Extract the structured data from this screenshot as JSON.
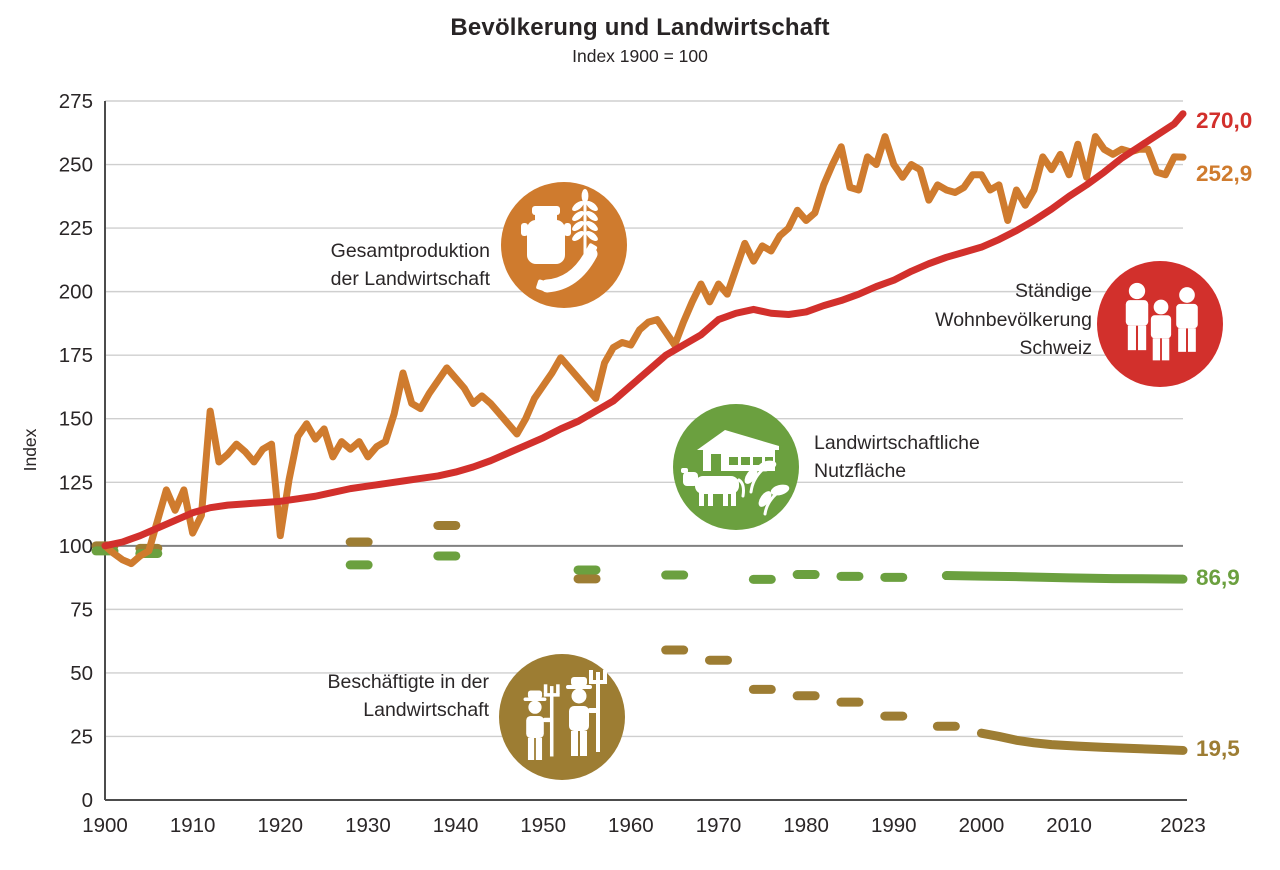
{
  "legend": [
    {
      "label": "Gesamtproduktion\nder Landwirtschaft",
      "icon": "milk-can-wheat-sausage-icon",
      "color": "#cf7b2e"
    },
    {
      "label": "Ständige\nWohnbevölkerung\nSchweiz",
      "icon": "people-icon",
      "color": "#d2302c"
    },
    {
      "label": "Landwirtschaftliche\nNutzfläche",
      "icon": "farmhouse-cow-leaves-icon",
      "color": "#6ba03f"
    },
    {
      "label": "Beschäftigte in der\nLandwirtschaft",
      "icon": "farmers-pitchfork-icon",
      "color": "#9d7d33"
    }
  ],
  "chart_data": {
    "type": "line",
    "title": "Bevölkerung und Landwirtschaft",
    "subtitle": "Index 1900 = 100",
    "ylabel": "Index",
    "ylim": [
      0,
      275
    ],
    "xlim": [
      1900,
      2023
    ],
    "yticks": [
      0,
      25,
      50,
      75,
      100,
      125,
      150,
      175,
      200,
      225,
      250,
      275
    ],
    "xticks": [
      1900,
      1910,
      1920,
      1930,
      1940,
      1950,
      1960,
      1970,
      1980,
      1990,
      2000,
      2010,
      2023
    ],
    "reference_gridline": 100,
    "grid": true,
    "legend_position": "inside",
    "series": [
      {
        "name": "Beschäftigte in der Landwirtschaft",
        "color": "#9d7d33",
        "style": "dashes-then-solid",
        "end_label": "19,5",
        "end_value": 19.5,
        "dash_points": [
          [
            1900,
            100
          ],
          [
            1905,
            99
          ],
          [
            1929,
            101.5
          ],
          [
            1939,
            108
          ],
          [
            1955,
            87
          ],
          [
            1965,
            59
          ],
          [
            1970,
            55
          ],
          [
            1975,
            43.5
          ],
          [
            1980,
            41
          ],
          [
            1985,
            38.5
          ],
          [
            1990,
            33
          ],
          [
            1996,
            29
          ]
        ],
        "line_points": [
          [
            2000,
            26.3
          ],
          [
            2002,
            25
          ],
          [
            2004,
            23.5
          ],
          [
            2006,
            22.5
          ],
          [
            2008,
            21.8
          ],
          [
            2011,
            21.2
          ],
          [
            2014,
            20.7
          ],
          [
            2017,
            20.3
          ],
          [
            2020,
            19.9
          ],
          [
            2023,
            19.5
          ]
        ]
      },
      {
        "name": "Landwirtschaftliche Nutzfläche",
        "color": "#6ba03f",
        "style": "dashes-then-solid",
        "end_label": "86,9",
        "end_value": 86.9,
        "dash_points": [
          [
            1900,
            98
          ],
          [
            1905,
            97
          ],
          [
            1929,
            92.5
          ],
          [
            1939,
            96
          ],
          [
            1955,
            90.5
          ],
          [
            1965,
            88.5
          ],
          [
            1975,
            86.8
          ],
          [
            1980,
            88.7
          ],
          [
            1985,
            88
          ],
          [
            1990,
            87.6
          ]
        ],
        "line_points": [
          [
            1996,
            88.3
          ],
          [
            2000,
            88.1
          ],
          [
            2005,
            87.8
          ],
          [
            2010,
            87.4
          ],
          [
            2015,
            87.1
          ],
          [
            2020,
            87.0
          ],
          [
            2023,
            86.9
          ]
        ]
      },
      {
        "name": "Gesamtproduktion der Landwirtschaft",
        "color": "#cf7b2e",
        "style": "solid",
        "end_label": "252,9",
        "end_value": 252.9,
        "points": [
          [
            1900,
            100
          ],
          [
            1901,
            97
          ],
          [
            1902,
            94.5
          ],
          [
            1903,
            93
          ],
          [
            1904,
            96
          ],
          [
            1905,
            98
          ],
          [
            1906,
            110
          ],
          [
            1907,
            122
          ],
          [
            1908,
            114
          ],
          [
            1909,
            122
          ],
          [
            1910,
            105
          ],
          [
            1911,
            112
          ],
          [
            1912,
            153
          ],
          [
            1913,
            133
          ],
          [
            1914,
            136
          ],
          [
            1915,
            140
          ],
          [
            1916,
            137
          ],
          [
            1917,
            133
          ],
          [
            1918,
            138
          ],
          [
            1919,
            140
          ],
          [
            1920,
            104
          ],
          [
            1921,
            126
          ],
          [
            1922,
            143
          ],
          [
            1923,
            148
          ],
          [
            1924,
            142
          ],
          [
            1925,
            146
          ],
          [
            1926,
            135
          ],
          [
            1927,
            141
          ],
          [
            1928,
            138
          ],
          [
            1929,
            141
          ],
          [
            1930,
            135
          ],
          [
            1931,
            139
          ],
          [
            1932,
            141
          ],
          [
            1933,
            152
          ],
          [
            1934,
            168
          ],
          [
            1935,
            156
          ],
          [
            1936,
            154
          ],
          [
            1937,
            160
          ],
          [
            1938,
            165
          ],
          [
            1939,
            170
          ],
          [
            1940,
            166
          ],
          [
            1941,
            162
          ],
          [
            1942,
            156
          ],
          [
            1943,
            159
          ],
          [
            1944,
            156
          ],
          [
            1945,
            152
          ],
          [
            1946,
            148
          ],
          [
            1947,
            144
          ],
          [
            1948,
            150
          ],
          [
            1949,
            158
          ],
          [
            1950,
            163
          ],
          [
            1951,
            168
          ],
          [
            1952,
            174
          ],
          [
            1953,
            170
          ],
          [
            1954,
            166
          ],
          [
            1955,
            162
          ],
          [
            1956,
            158
          ],
          [
            1957,
            172
          ],
          [
            1958,
            178
          ],
          [
            1959,
            180
          ],
          [
            1960,
            179
          ],
          [
            1961,
            185
          ],
          [
            1962,
            188
          ],
          [
            1963,
            189
          ],
          [
            1964,
            184
          ],
          [
            1965,
            179
          ],
          [
            1966,
            188
          ],
          [
            1967,
            196
          ],
          [
            1968,
            203
          ],
          [
            1969,
            196
          ],
          [
            1970,
            203
          ],
          [
            1971,
            199
          ],
          [
            1972,
            209
          ],
          [
            1973,
            219
          ],
          [
            1974,
            212
          ],
          [
            1975,
            218
          ],
          [
            1976,
            216
          ],
          [
            1977,
            222
          ],
          [
            1978,
            225
          ],
          [
            1979,
            232
          ],
          [
            1980,
            228
          ],
          [
            1981,
            231
          ],
          [
            1982,
            242
          ],
          [
            1983,
            250
          ],
          [
            1984,
            257
          ],
          [
            1985,
            241
          ],
          [
            1986,
            240
          ],
          [
            1987,
            253
          ],
          [
            1988,
            250
          ],
          [
            1989,
            261
          ],
          [
            1990,
            250
          ],
          [
            1991,
            245
          ],
          [
            1992,
            250
          ],
          [
            1993,
            248
          ],
          [
            1994,
            236
          ],
          [
            1995,
            242
          ],
          [
            1996,
            240
          ],
          [
            1997,
            239
          ],
          [
            1998,
            241
          ],
          [
            1999,
            246
          ],
          [
            2000,
            246
          ],
          [
            2001,
            240
          ],
          [
            2002,
            242
          ],
          [
            2003,
            228
          ],
          [
            2004,
            240
          ],
          [
            2005,
            234
          ],
          [
            2006,
            240
          ],
          [
            2007,
            253
          ],
          [
            2008,
            248
          ],
          [
            2009,
            254
          ],
          [
            2010,
            246
          ],
          [
            2011,
            258
          ],
          [
            2012,
            245
          ],
          [
            2013,
            261
          ],
          [
            2014,
            256
          ],
          [
            2015,
            254
          ],
          [
            2016,
            256
          ],
          [
            2017,
            255
          ],
          [
            2018,
            256
          ],
          [
            2019,
            256
          ],
          [
            2020,
            247
          ],
          [
            2021,
            246
          ],
          [
            2022,
            253
          ],
          [
            2023,
            252.9
          ]
        ]
      },
      {
        "name": "Ständige Wohnbevölkerung Schweiz",
        "color": "#d2302c",
        "style": "solid",
        "end_label": "270,0",
        "end_value": 270.0,
        "points": [
          [
            1900,
            100
          ],
          [
            1902,
            101.5
          ],
          [
            1904,
            104
          ],
          [
            1906,
            107
          ],
          [
            1908,
            110
          ],
          [
            1910,
            113
          ],
          [
            1912,
            115
          ],
          [
            1914,
            116
          ],
          [
            1916,
            116.5
          ],
          [
            1918,
            117
          ],
          [
            1920,
            117.5
          ],
          [
            1922,
            118.5
          ],
          [
            1924,
            119.5
          ],
          [
            1926,
            121
          ],
          [
            1928,
            122.5
          ],
          [
            1930,
            123.5
          ],
          [
            1932,
            124.5
          ],
          [
            1934,
            125.5
          ],
          [
            1936,
            126.5
          ],
          [
            1938,
            127.5
          ],
          [
            1940,
            129
          ],
          [
            1942,
            131
          ],
          [
            1944,
            133.5
          ],
          [
            1946,
            136.5
          ],
          [
            1948,
            139.5
          ],
          [
            1950,
            142.5
          ],
          [
            1952,
            146
          ],
          [
            1954,
            149
          ],
          [
            1956,
            153
          ],
          [
            1958,
            157
          ],
          [
            1960,
            163
          ],
          [
            1962,
            169
          ],
          [
            1964,
            175
          ],
          [
            1966,
            179
          ],
          [
            1968,
            183
          ],
          [
            1970,
            189
          ],
          [
            1972,
            191.5
          ],
          [
            1974,
            193
          ],
          [
            1976,
            191.5
          ],
          [
            1978,
            191
          ],
          [
            1980,
            192
          ],
          [
            1982,
            194.5
          ],
          [
            1984,
            196.5
          ],
          [
            1986,
            199
          ],
          [
            1988,
            202
          ],
          [
            1990,
            204.5
          ],
          [
            1992,
            208
          ],
          [
            1994,
            211
          ],
          [
            1996,
            213.5
          ],
          [
            1998,
            215.5
          ],
          [
            2000,
            217.5
          ],
          [
            2002,
            220.5
          ],
          [
            2004,
            224
          ],
          [
            2006,
            228
          ],
          [
            2008,
            232.5
          ],
          [
            2010,
            237.5
          ],
          [
            2012,
            242
          ],
          [
            2014,
            247
          ],
          [
            2016,
            252.5
          ],
          [
            2018,
            257
          ],
          [
            2020,
            261.5
          ],
          [
            2022,
            266
          ],
          [
            2023,
            270
          ]
        ]
      }
    ]
  }
}
